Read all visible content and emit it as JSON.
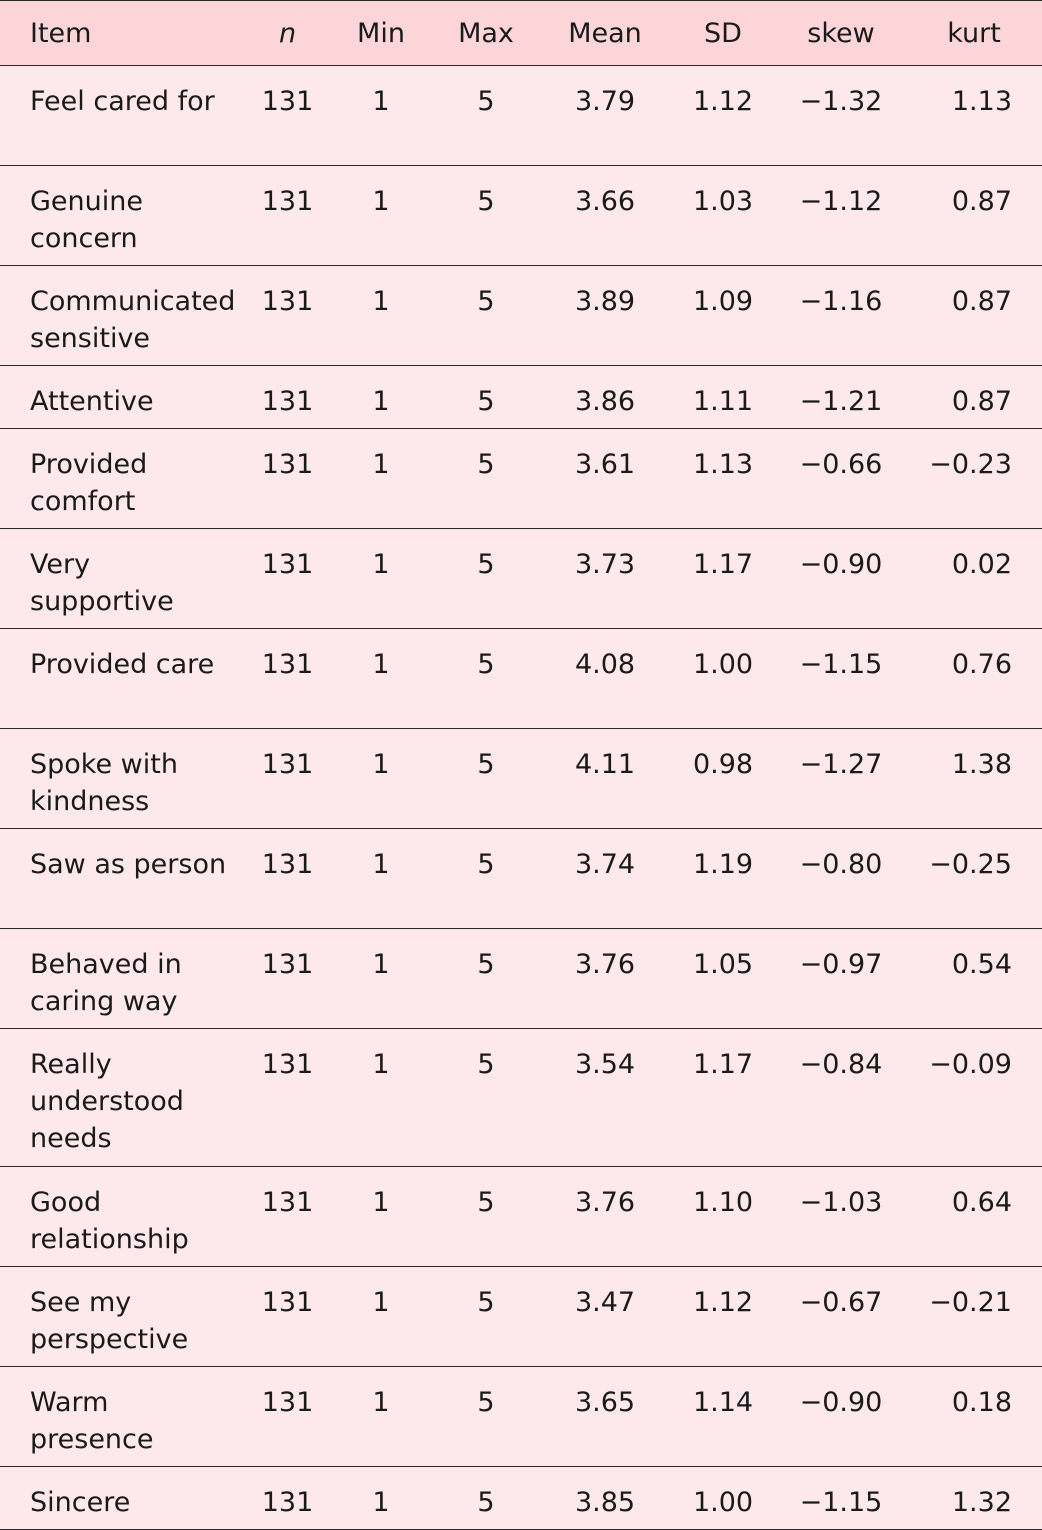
{
  "table": {
    "headers": {
      "item": "Item",
      "n": "n",
      "min": "Min",
      "max": "Max",
      "mean": "Mean",
      "sd": "SD",
      "skew": "skew",
      "kurt": "kurt"
    },
    "rows": [
      {
        "item": "Feel cared for",
        "n": "131",
        "min": "1",
        "max": "5",
        "mean": "3.79",
        "sd": "1.12",
        "skew": "−1.32",
        "kurt": "1.13"
      },
      {
        "item": "Genuine concern",
        "n": "131",
        "min": "1",
        "max": "5",
        "mean": "3.66",
        "sd": "1.03",
        "skew": "−1.12",
        "kurt": "0.87"
      },
      {
        "item": "Communicated sensitive",
        "n": "131",
        "min": "1",
        "max": "5",
        "mean": "3.89",
        "sd": "1.09",
        "skew": "−1.16",
        "kurt": "0.87"
      },
      {
        "item": "Attentive",
        "n": "131",
        "min": "1",
        "max": "5",
        "mean": "3.86",
        "sd": "1.11",
        "skew": "−1.21",
        "kurt": "0.87"
      },
      {
        "item": "Provided comfort",
        "n": "131",
        "min": "1",
        "max": "5",
        "mean": "3.61",
        "sd": "1.13",
        "skew": "−0.66",
        "kurt": "−0.23"
      },
      {
        "item": "Very supportive",
        "n": "131",
        "min": "1",
        "max": "5",
        "mean": "3.73",
        "sd": "1.17",
        "skew": "−0.90",
        "kurt": "0.02"
      },
      {
        "item": "Provided care",
        "n": "131",
        "min": "1",
        "max": "5",
        "mean": "4.08",
        "sd": "1.00",
        "skew": "−1.15",
        "kurt": "0.76"
      },
      {
        "item": "Spoke with kindness",
        "n": "131",
        "min": "1",
        "max": "5",
        "mean": "4.11",
        "sd": "0.98",
        "skew": "−1.27",
        "kurt": "1.38"
      },
      {
        "item": "Saw as person",
        "n": "131",
        "min": "1",
        "max": "5",
        "mean": "3.74",
        "sd": "1.19",
        "skew": "−0.80",
        "kurt": "−0.25"
      },
      {
        "item": "Behaved in caring way",
        "n": "131",
        "min": "1",
        "max": "5",
        "mean": "3.76",
        "sd": "1.05",
        "skew": "−0.97",
        "kurt": "0.54"
      },
      {
        "item": "Really understood needs",
        "n": "131",
        "min": "1",
        "max": "5",
        "mean": "3.54",
        "sd": "1.17",
        "skew": "−0.84",
        "kurt": "−0.09"
      },
      {
        "item": "Good relationship",
        "n": "131",
        "min": "1",
        "max": "5",
        "mean": "3.76",
        "sd": "1.10",
        "skew": "−1.03",
        "kurt": "0.64"
      },
      {
        "item": "See my perspective",
        "n": "131",
        "min": "1",
        "max": "5",
        "mean": "3.47",
        "sd": "1.12",
        "skew": "−0.67",
        "kurt": "−0.21"
      },
      {
        "item": "Warm presence",
        "n": "131",
        "min": "1",
        "max": "5",
        "mean": "3.65",
        "sd": "1.14",
        "skew": "−0.90",
        "kurt": "0.18"
      },
      {
        "item": "Sincere",
        "n": "131",
        "min": "1",
        "max": "5",
        "mean": "3.85",
        "sd": "1.00",
        "skew": "−1.15",
        "kurt": "1.32"
      }
    ]
  }
}
